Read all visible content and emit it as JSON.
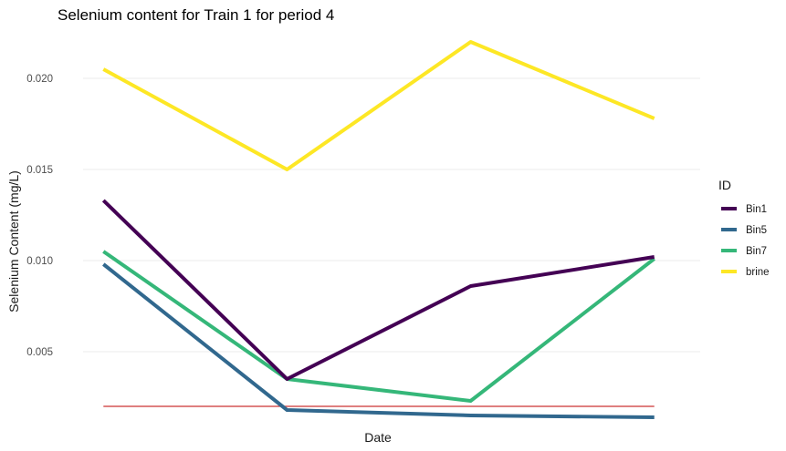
{
  "chart_data": {
    "type": "line",
    "title": "Selenium content for Train 1 for period 4",
    "xlabel": "Date",
    "ylabel": "Selenium Content (mg/L)",
    "x": [
      1,
      2,
      3,
      4
    ],
    "ylim": [
      0.0013,
      0.0228
    ],
    "yticks": [
      0.005,
      0.01,
      0.015,
      0.02
    ],
    "ytick_labels": [
      "0.005",
      "0.010",
      "0.015",
      "0.020"
    ],
    "grid": true,
    "legend": {
      "title": "ID",
      "position": "right"
    },
    "series": [
      {
        "name": "Bin1",
        "color": "#440154",
        "values": [
          0.0133,
          0.0035,
          0.0086,
          0.0102
        ]
      },
      {
        "name": "Bin5",
        "color": "#31688E",
        "values": [
          0.0098,
          0.0018,
          0.0015,
          0.0014
        ]
      },
      {
        "name": "Bin7",
        "color": "#35B779",
        "values": [
          0.0105,
          0.0035,
          0.0023,
          0.0101
        ]
      },
      {
        "name": "brine",
        "color": "#FDE725",
        "values": [
          0.0205,
          0.015,
          0.022,
          0.0178
        ]
      }
    ],
    "reference_line": {
      "y": 0.002,
      "color": "#cc3333"
    }
  }
}
